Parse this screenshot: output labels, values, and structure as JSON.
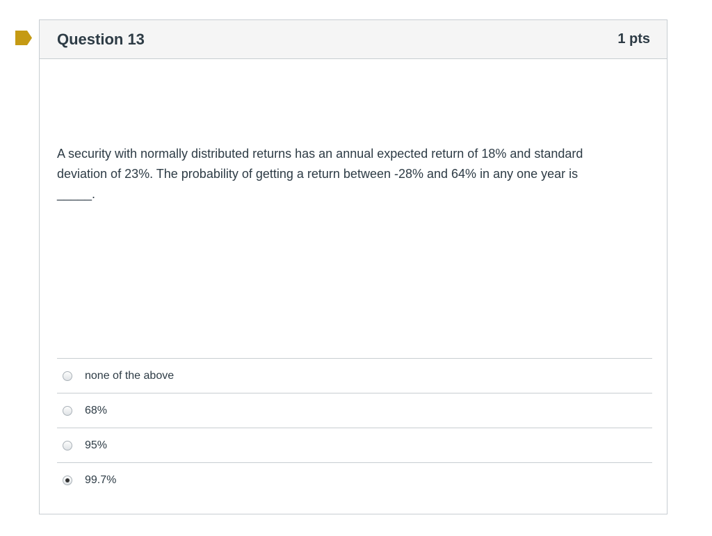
{
  "question": {
    "title": "Question 13",
    "points": "1 pts",
    "text_line1": "A security with normally distributed returns has an annual expected return of 18% and standard",
    "text_line2": "deviation of 23%. The probability of getting a return between -28% and 64% in any one year is",
    "text_line3": "_____.",
    "flag_icon": "bookmark-flag-icon",
    "flag_color": "#c59a13"
  },
  "answers": [
    {
      "label": "none of the above",
      "selected": false
    },
    {
      "label": "68%",
      "selected": false
    },
    {
      "label": "95%",
      "selected": false
    },
    {
      "label": "99.7%",
      "selected": true
    }
  ]
}
